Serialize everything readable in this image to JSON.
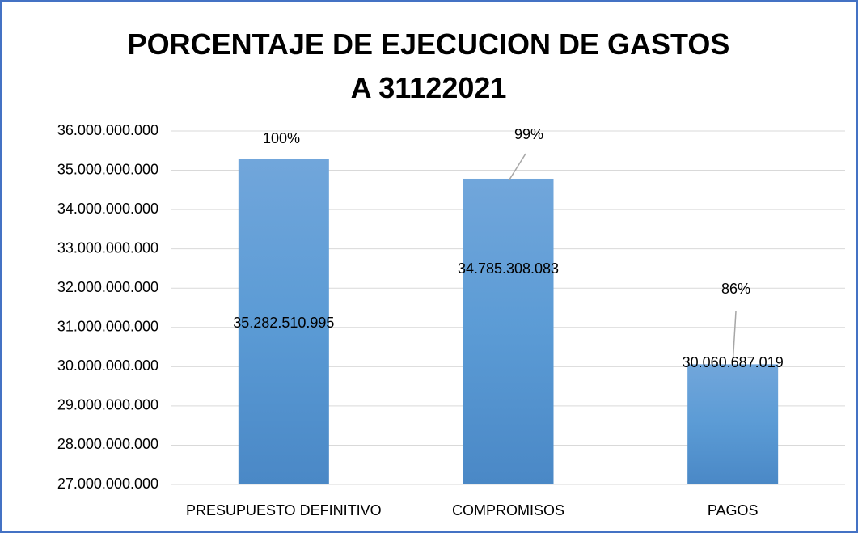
{
  "chart_data": {
    "type": "bar",
    "title": "PORCENTAJE DE EJECUCION DE GASTOS A 31122021",
    "categories": [
      "PRESUPUESTO DEFINITIVO",
      "COMPROMISOS",
      "PAGOS"
    ],
    "values": [
      35282510995,
      34785308083,
      30060687019
    ],
    "value_labels": [
      "35.282.510.995",
      "34.785.308.083",
      "30.060.687.019"
    ],
    "annotations": [
      "100%",
      "99%",
      "86%"
    ],
    "color": "#5b9bd5",
    "ylim": [
      27000000000,
      36000000000
    ],
    "yticks": [
      {
        "value": 27000000000,
        "label": "27.000.000.000"
      },
      {
        "value": 28000000000,
        "label": "28.000.000.000"
      },
      {
        "value": 29000000000,
        "label": "29.000.000.000"
      },
      {
        "value": 30000000000,
        "label": "30.000.000.000"
      },
      {
        "value": 31000000000,
        "label": "31.000.000.000"
      },
      {
        "value": 32000000000,
        "label": "32.000.000.000"
      },
      {
        "value": 33000000000,
        "label": "33.000.000.000"
      },
      {
        "value": 34000000000,
        "label": "34.000.000.000"
      },
      {
        "value": 35000000000,
        "label": "35.000.000.000"
      },
      {
        "value": 36000000000,
        "label": "36.000.000.000"
      }
    ],
    "grid": true
  }
}
